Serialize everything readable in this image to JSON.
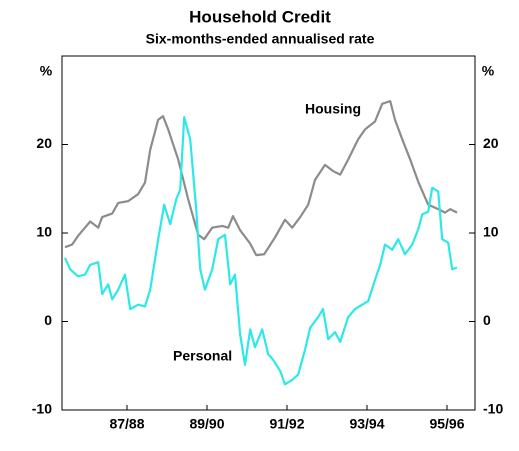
{
  "chart_data": {
    "type": "line",
    "title": "Household Credit",
    "subtitle": "Six-months-ended annualised rate",
    "y_label": "%",
    "y2_label": "%",
    "xlim": [
      1986.375,
      1996.7
    ],
    "xticks": [
      {
        "value": 1988,
        "label": "87/88"
      },
      {
        "value": 1990,
        "label": "89/90"
      },
      {
        "value": 1992,
        "label": "91/92"
      },
      {
        "value": 1994,
        "label": "93/94"
      },
      {
        "value": 1996,
        "label": "95/96"
      }
    ],
    "ylim": [
      -10,
      30
    ],
    "yticks": [
      -10,
      0,
      10,
      20
    ],
    "y2lim": [
      -10,
      30
    ],
    "y2ticks": [
      -10,
      0,
      10,
      20
    ],
    "series": [
      {
        "name": "Housing",
        "color": "#8c8c8c",
        "x": [
          1986.45,
          1986.63,
          1986.78,
          1987.08,
          1987.28,
          1987.38,
          1987.63,
          1987.78,
          1988.03,
          1988.28,
          1988.45,
          1988.58,
          1988.78,
          1988.9,
          1989.03,
          1989.28,
          1989.53,
          1989.78,
          1989.93,
          1990.13,
          1990.38,
          1990.53,
          1990.65,
          1990.83,
          1991.08,
          1991.23,
          1991.43,
          1991.7,
          1991.95,
          1992.13,
          1992.33,
          1992.53,
          1992.7,
          1992.95,
          1993.15,
          1993.33,
          1993.53,
          1993.78,
          1993.95,
          1994.2,
          1994.38,
          1994.58,
          1994.7,
          1994.88,
          1995.08,
          1995.28,
          1995.53,
          1995.78,
          1995.95,
          1996.08,
          1996.25
        ],
        "values": [
          8.4,
          8.7,
          9.7,
          11.3,
          10.6,
          11.8,
          12.2,
          13.4,
          13.6,
          14.4,
          15.7,
          19.4,
          22.8,
          23.2,
          21.7,
          18.3,
          13.8,
          9.8,
          9.3,
          10.6,
          10.8,
          10.6,
          11.9,
          10.3,
          8.8,
          7.5,
          7.6,
          9.5,
          11.5,
          10.6,
          11.8,
          13.2,
          16.0,
          17.7,
          17.0,
          16.6,
          18.3,
          20.6,
          21.7,
          22.6,
          24.6,
          24.9,
          22.8,
          20.6,
          18.3,
          15.8,
          13.2,
          12.7,
          12.3,
          12.7,
          12.3
        ]
      },
      {
        "name": "Personal",
        "color": "#2ee8e8",
        "x": [
          1986.45,
          1986.58,
          1986.78,
          1986.95,
          1987.08,
          1987.28,
          1987.38,
          1987.53,
          1987.63,
          1987.78,
          1987.95,
          1988.08,
          1988.28,
          1988.45,
          1988.58,
          1988.78,
          1988.93,
          1989.08,
          1989.23,
          1989.33,
          1989.43,
          1989.58,
          1989.73,
          1989.83,
          1989.95,
          1990.13,
          1990.28,
          1990.45,
          1990.58,
          1990.7,
          1990.83,
          1990.95,
          1991.08,
          1991.2,
          1991.38,
          1991.53,
          1991.65,
          1991.83,
          1991.95,
          1992.13,
          1992.28,
          1992.45,
          1992.58,
          1992.78,
          1992.9,
          1993.03,
          1993.2,
          1993.33,
          1993.53,
          1993.7,
          1993.88,
          1994.03,
          1994.2,
          1994.33,
          1994.45,
          1994.63,
          1994.78,
          1994.95,
          1995.13,
          1995.28,
          1995.38,
          1995.53,
          1995.63,
          1995.78,
          1995.88,
          1996.03,
          1996.13,
          1996.25
        ],
        "values": [
          7.2,
          5.9,
          5.1,
          5.3,
          6.4,
          6.7,
          3.1,
          4.2,
          2.5,
          3.6,
          5.3,
          1.4,
          1.9,
          1.7,
          3.6,
          9.3,
          13.2,
          11.0,
          13.8,
          14.9,
          23.1,
          20.6,
          12.7,
          5.9,
          3.6,
          5.9,
          9.3,
          9.8,
          4.2,
          5.3,
          -1.5,
          -4.9,
          -0.9,
          -2.9,
          -0.9,
          -3.7,
          -4.3,
          -5.6,
          -7.1,
          -6.6,
          -6.0,
          -3.2,
          -0.7,
          0.5,
          1.4,
          -2.0,
          -1.2,
          -2.3,
          0.5,
          1.4,
          1.9,
          2.3,
          4.7,
          6.4,
          8.7,
          8.1,
          9.3,
          7.6,
          8.7,
          10.4,
          12.1,
          12.4,
          15.1,
          14.7,
          9.3,
          8.9,
          5.9,
          6.1
        ]
      }
    ]
  }
}
